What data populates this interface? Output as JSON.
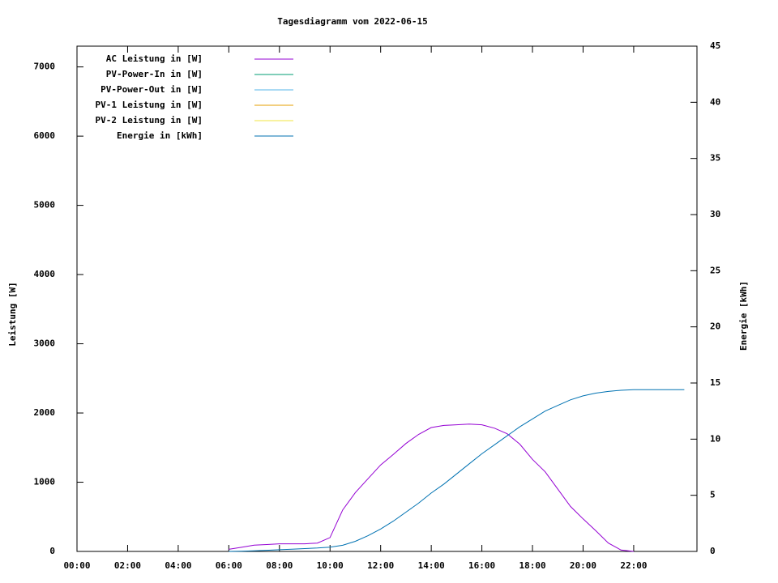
{
  "chart_data": {
    "type": "line",
    "title": "Tagesdiagramm vom 2022-06-15",
    "ylabel": "Leistung [W]",
    "y2label": "Energie [kWh]",
    "x": [
      0,
      0.5,
      1,
      1.5,
      2,
      2.5,
      3,
      3.5,
      4,
      4.5,
      5,
      5.5,
      6,
      6.5,
      7,
      7.5,
      8,
      8.5,
      9,
      9.5,
      10,
      10.5,
      11,
      11.5,
      12,
      12.5,
      13,
      13.5,
      14,
      14.5,
      15,
      15.5,
      16,
      16.5,
      17,
      17.5,
      18,
      18.5,
      19,
      19.5,
      20,
      20.5,
      21,
      21.5,
      22,
      22.5,
      23,
      23.5,
      24
    ],
    "xlim": [
      0,
      24.5
    ],
    "xticks": [
      {
        "value": 0,
        "label": "00:00"
      },
      {
        "value": 2,
        "label": "02:00"
      },
      {
        "value": 4,
        "label": "04:00"
      },
      {
        "value": 6,
        "label": "06:00"
      },
      {
        "value": 8,
        "label": "08:00"
      },
      {
        "value": 10,
        "label": "10:00"
      },
      {
        "value": 12,
        "label": "12:00"
      },
      {
        "value": 14,
        "label": "14:00"
      },
      {
        "value": 16,
        "label": "16:00"
      },
      {
        "value": 18,
        "label": "18:00"
      },
      {
        "value": 20,
        "label": "20:00"
      },
      {
        "value": 22,
        "label": "22:00"
      }
    ],
    "ylim": [
      0,
      7300
    ],
    "yticks": [
      0,
      1000,
      2000,
      3000,
      4000,
      5000,
      6000,
      7000
    ],
    "y2lim": [
      0,
      45
    ],
    "y2ticks": [
      0,
      5,
      10,
      15,
      20,
      25,
      30,
      35,
      40,
      45
    ],
    "series": [
      {
        "name": "AC Leistung in [W]",
        "color": "#9400d3",
        "values": [
          null,
          null,
          null,
          null,
          null,
          null,
          null,
          null,
          null,
          null,
          null,
          null,
          30,
          60,
          90,
          100,
          110,
          110,
          110,
          120,
          200,
          600,
          850,
          1050,
          1250,
          1400,
          1560,
          1690,
          1790,
          1820,
          1830,
          1840,
          1830,
          1780,
          1700,
          1550,
          1330,
          1150,
          900,
          650,
          470,
          300,
          120,
          20,
          0,
          null,
          null,
          null,
          null
        ]
      },
      {
        "name": "PV-Power-In in [W]",
        "color": "#009e73",
        "values": [
          null,
          null,
          null,
          null,
          null,
          null,
          null,
          null,
          null,
          null,
          null,
          null,
          null,
          null,
          null,
          null,
          null,
          null,
          null,
          null,
          null,
          null,
          null,
          null,
          null,
          null,
          null,
          null,
          null,
          null,
          null,
          null,
          null,
          null,
          null,
          null,
          null,
          null,
          null,
          null,
          null,
          null,
          null,
          null,
          null,
          null,
          null,
          null,
          null
        ]
      },
      {
        "name": "PV-Power-Out in [W]",
        "color": "#56b4e9",
        "values": [
          null,
          null,
          null,
          null,
          null,
          null,
          null,
          null,
          null,
          null,
          null,
          null,
          null,
          null,
          null,
          null,
          null,
          null,
          null,
          null,
          null,
          null,
          null,
          null,
          null,
          null,
          null,
          null,
          null,
          null,
          null,
          null,
          null,
          null,
          null,
          null,
          null,
          null,
          null,
          null,
          null,
          null,
          null,
          null,
          null,
          null,
          null,
          null,
          null
        ]
      },
      {
        "name": "PV-1 Leistung in [W]",
        "color": "#e69f00",
        "values": [
          null,
          null,
          null,
          null,
          null,
          null,
          null,
          null,
          null,
          null,
          null,
          null,
          null,
          null,
          null,
          null,
          null,
          null,
          null,
          null,
          null,
          null,
          null,
          null,
          null,
          null,
          null,
          null,
          null,
          null,
          null,
          null,
          null,
          null,
          null,
          null,
          null,
          null,
          null,
          null,
          null,
          null,
          null,
          null,
          null,
          null,
          null,
          null,
          null
        ]
      },
      {
        "name": "PV-2 Leistung in [W]",
        "color": "#f0e442",
        "values": [
          null,
          null,
          null,
          null,
          null,
          null,
          null,
          null,
          null,
          null,
          null,
          null,
          null,
          null,
          null,
          null,
          null,
          null,
          null,
          null,
          null,
          null,
          null,
          null,
          null,
          null,
          null,
          null,
          null,
          null,
          null,
          null,
          null,
          null,
          null,
          null,
          null,
          null,
          null,
          null,
          null,
          null,
          null,
          null,
          null,
          null,
          null,
          null,
          null
        ]
      },
      {
        "name": "Energie in [kWh]",
        "color": "#0072b2",
        "axis": "y2",
        "values": [
          null,
          null,
          null,
          null,
          null,
          null,
          null,
          null,
          null,
          null,
          null,
          null,
          0,
          0.02,
          0.05,
          0.1,
          0.15,
          0.2,
          0.25,
          0.3,
          0.38,
          0.55,
          0.9,
          1.4,
          2.0,
          2.7,
          3.5,
          4.3,
          5.2,
          6.0,
          6.9,
          7.8,
          8.7,
          9.5,
          10.3,
          11.1,
          11.8,
          12.5,
          13.0,
          13.5,
          13.85,
          14.1,
          14.25,
          14.35,
          14.4,
          14.4,
          14.4,
          14.4,
          14.4
        ]
      }
    ]
  }
}
